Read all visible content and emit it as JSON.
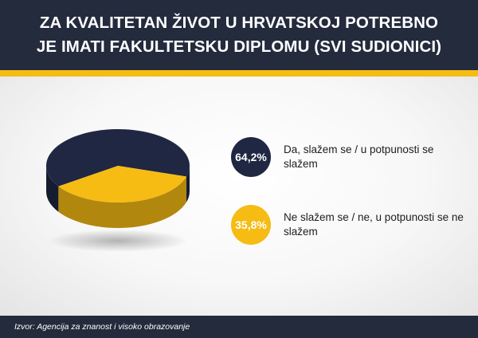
{
  "header": {
    "title_line1": "ZA KVALITETAN ŽIVOT U HRVATSKOJ POTREBNO",
    "title_line2": "JE IMATI FAKULTETSKU DIPLOMU (SVI SUDIONICI)"
  },
  "chart_data": {
    "type": "pie",
    "style": "3d",
    "slices": [
      {
        "label_value": "64,2%",
        "label": "Da, slažem se / u potpunosti se slažem",
        "value": 64.2,
        "color": "#1f2742",
        "text_color": "#ffffff"
      },
      {
        "label_value": "35,8%",
        "label": "Ne slažem se / ne, u potpunosti se ne slažem",
        "value": 35.8,
        "color": "#f6bc14",
        "text_color": "#ffffff"
      }
    ],
    "legend_position": "right"
  },
  "footer": {
    "source": "Izvor: Agencija za znanost i visoko obrazovanje"
  },
  "colors": {
    "header_bg": "#232b3d",
    "accent": "#f6bc14"
  }
}
